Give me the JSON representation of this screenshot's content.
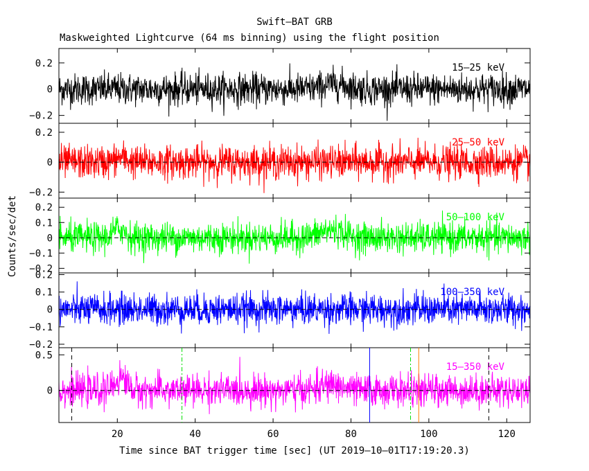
{
  "chart_data": {
    "type": "line",
    "title": "Swift–BAT GRB",
    "subtitle": "Maskweighted Lightcurve (64 ms binning) using the flight position",
    "xlabel": "Time since BAT trigger time [sec] (UT 2019–10–01T17:19:20.3)",
    "ylabel": "Counts/sec/det",
    "xlim": [
      5,
      126
    ],
    "x_ticks": [
      20,
      40,
      60,
      80,
      100,
      120
    ],
    "x_tick_labels": [
      "20",
      "40",
      "60",
      "80",
      "100",
      "120"
    ],
    "panels": [
      {
        "name": "15–25 keV",
        "color": "#000000",
        "ylim": [
          -0.26,
          0.31
        ],
        "y_ticks": [
          -0.2,
          0,
          0.2
        ],
        "y_tick_labels": [
          "−0.2",
          "0",
          "0.2"
        ],
        "noise_amplitude": 0.06,
        "zero_line": false,
        "bumps": [
          {
            "x": 76,
            "width": 3,
            "height": 0.04
          }
        ]
      },
      {
        "name": "25–50 keV",
        "color": "#ff0000",
        "ylim": [
          -0.24,
          0.26
        ],
        "y_ticks": [
          -0.2,
          0,
          0.2
        ],
        "y_tick_labels": [
          "−0.2",
          "0",
          "0.2"
        ],
        "noise_amplitude": 0.055,
        "zero_line": true,
        "bumps": [
          {
            "x": 21,
            "width": 1.5,
            "height": 0.03
          }
        ]
      },
      {
        "name": "50–100 keV",
        "color": "#00ff00",
        "ylim": [
          -0.23,
          0.26
        ],
        "y_ticks": [
          -0.2,
          -0.1,
          0,
          0.1,
          0.2
        ],
        "y_tick_labels": [
          "−0.2",
          "−0.1",
          "0",
          "0.1",
          "0.2"
        ],
        "noise_amplitude": 0.05,
        "zero_line": true,
        "bumps": [
          {
            "x": 20.5,
            "width": 1.5,
            "height": 0.06
          },
          {
            "x": 75,
            "width": 3,
            "height": 0.05
          }
        ]
      },
      {
        "name": "100–350 keV",
        "color": "#0000ff",
        "ylim": [
          -0.22,
          0.21
        ],
        "y_ticks": [
          -0.2,
          -0.1,
          0,
          0.1,
          0.2
        ],
        "y_tick_labels": [
          "−0.2",
          "−0.1",
          "0",
          "0.1",
          "0.2"
        ],
        "noise_amplitude": 0.045,
        "zero_line": true,
        "bumps": []
      },
      {
        "name": "15–350 keV",
        "color": "#ff00ff",
        "ylim": [
          -0.45,
          0.6
        ],
        "y_ticks": [
          0,
          0.5
        ],
        "y_tick_labels": [
          "0",
          "0.5"
        ],
        "noise_amplitude": 0.11,
        "zero_line": true,
        "bumps": [
          {
            "x": 21,
            "width": 1.5,
            "height": 0.18
          },
          {
            "x": 75,
            "width": 3,
            "height": 0.08
          }
        ]
      }
    ],
    "markers": [
      {
        "x": 8.3,
        "color": "#000000",
        "style": "dashed"
      },
      {
        "x": 36.6,
        "color": "#00dd00",
        "style": "dashdot"
      },
      {
        "x": 84.8,
        "color": "#0000ff",
        "style": "solid"
      },
      {
        "x": 95.3,
        "color": "#00dd00",
        "style": "dashdot"
      },
      {
        "x": 97.4,
        "color": "#ff8000",
        "style": "solid"
      },
      {
        "x": 115.4,
        "color": "#000000",
        "style": "dashed"
      }
    ]
  }
}
